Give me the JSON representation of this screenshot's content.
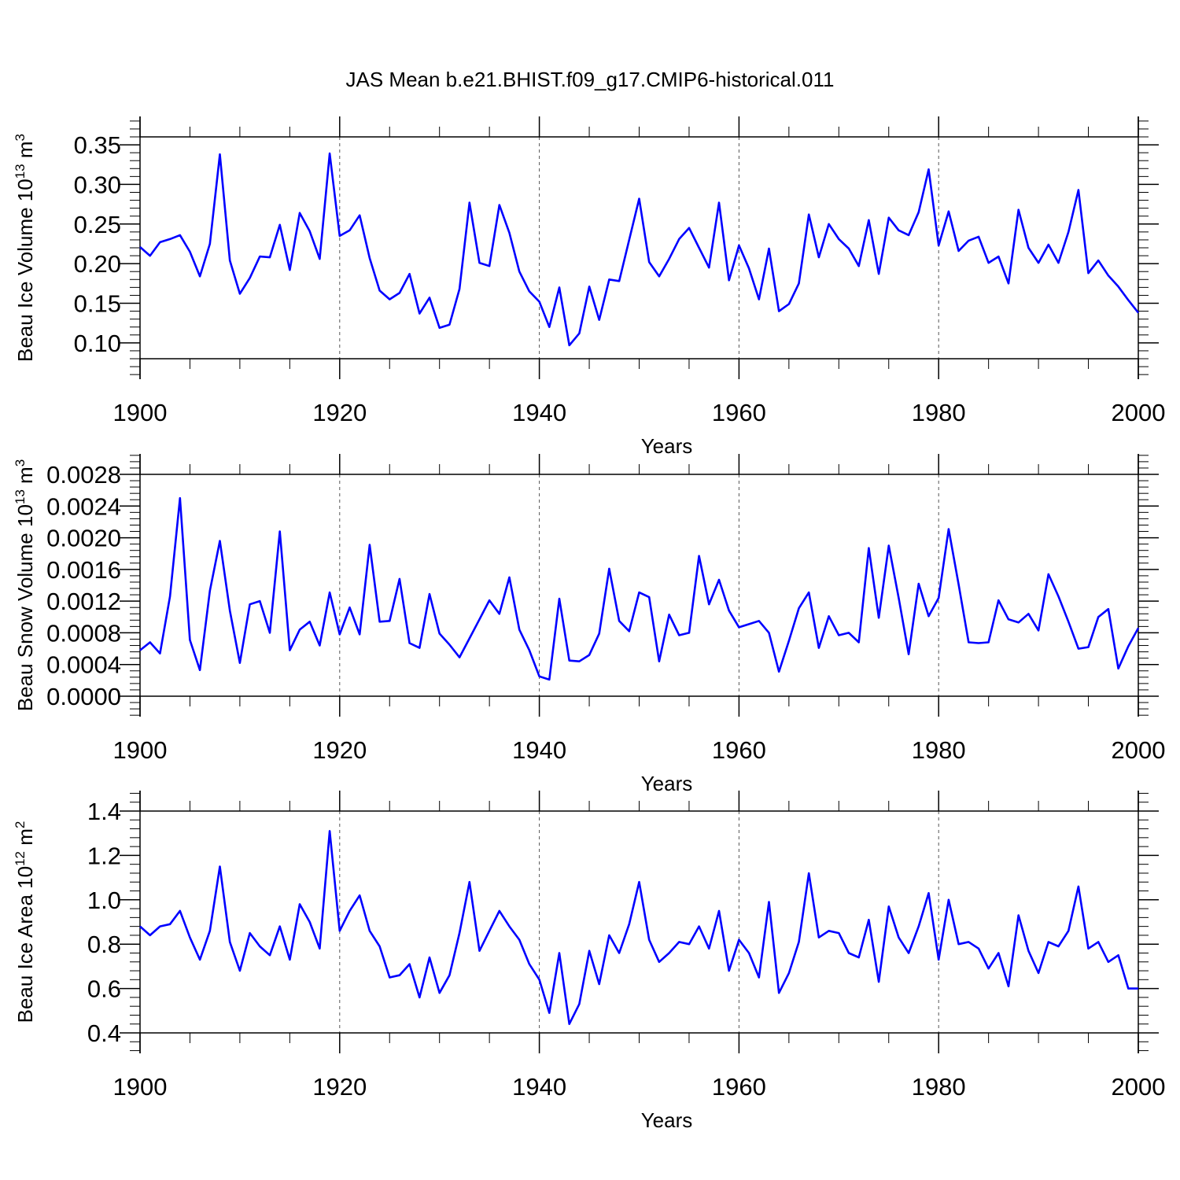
{
  "title": "JAS Mean b.e21.BHIST.f09_g17.CMIP6-historical.011",
  "chart_data": [
    {
      "type": "line",
      "ylabel": "Beau Ice Volume 10",
      "ylabel_exp": "13",
      "ylabel_unit": " m",
      "ylabel_unit_exp": "3",
      "xlabel": "Years",
      "xlim": [
        1900,
        2000
      ],
      "ylim": [
        0.08,
        0.36
      ],
      "yticks": [
        0.1,
        0.15,
        0.2,
        0.25,
        0.3,
        0.35
      ],
      "ytick_labels": [
        "0.10",
        "0.15",
        "0.20",
        "0.25",
        "0.30",
        "0.35"
      ],
      "xticks": [
        1900,
        1920,
        1940,
        1960,
        1980,
        2000
      ],
      "xtick_labels": [
        "1900",
        "1920",
        "1940",
        "1960",
        "1980",
        "2000"
      ],
      "grid_x": [
        1920,
        1940,
        1960,
        1980
      ],
      "series": [
        {
          "name": "Beau Ice Volume",
          "color": "#0000ff",
          "start_year": 1900,
          "values": [
            0.221,
            0.21,
            0.227,
            0.231,
            0.236,
            0.215,
            0.184,
            0.225,
            0.338,
            0.204,
            0.162,
            0.182,
            0.209,
            0.208,
            0.249,
            0.192,
            0.264,
            0.241,
            0.206,
            0.339,
            0.235,
            0.242,
            0.261,
            0.207,
            0.166,
            0.155,
            0.163,
            0.187,
            0.137,
            0.157,
            0.119,
            0.123,
            0.168,
            0.277,
            0.201,
            0.197,
            0.274,
            0.239,
            0.19,
            0.165,
            0.152,
            0.12,
            0.17,
            0.097,
            0.112,
            0.171,
            0.129,
            0.18,
            0.178,
            0.23,
            0.282,
            0.202,
            0.184,
            0.206,
            0.231,
            0.245,
            0.22,
            0.195,
            0.277,
            0.179,
            0.223,
            0.194,
            0.155,
            0.219,
            0.14,
            0.149,
            0.175,
            0.262,
            0.208,
            0.25,
            0.231,
            0.219,
            0.197,
            0.255,
            0.187,
            0.258,
            0.242,
            0.236,
            0.265,
            0.319,
            0.223,
            0.266,
            0.216,
            0.229,
            0.234,
            0.201,
            0.209,
            0.175,
            0.268,
            0.22,
            0.201,
            0.224,
            0.201,
            0.24,
            0.293,
            0.188,
            0.204,
            0.185,
            0.171,
            0.154,
            0.138
          ]
        }
      ]
    },
    {
      "type": "line",
      "ylabel": "Beau Snow Volume 10",
      "ylabel_exp": "13",
      "ylabel_unit": " m",
      "ylabel_unit_exp": "3",
      "xlabel": "Years",
      "xlim": [
        1900,
        2000
      ],
      "ylim": [
        0.0,
        0.0028
      ],
      "yticks": [
        0.0,
        0.0004,
        0.0008,
        0.0012,
        0.0016,
        0.002,
        0.0024,
        0.0028
      ],
      "ytick_labels": [
        "0.0000",
        "0.0004",
        "0.0008",
        "0.0012",
        "0.0016",
        "0.0020",
        "0.0024",
        "0.0028"
      ],
      "xticks": [
        1900,
        1920,
        1940,
        1960,
        1980,
        2000
      ],
      "xtick_labels": [
        "1900",
        "1920",
        "1940",
        "1960",
        "1980",
        "2000"
      ],
      "grid_x": [
        1920,
        1940,
        1960,
        1980
      ],
      "series": [
        {
          "name": "Beau Snow Volume",
          "color": "#0000ff",
          "start_year": 1900,
          "values": [
            0.00058,
            0.00068,
            0.00054,
            0.00126,
            0.0025,
            0.00071,
            0.00033,
            0.00133,
            0.00196,
            0.00108,
            0.00042,
            0.00116,
            0.0012,
            0.0008,
            0.00208,
            0.00058,
            0.00084,
            0.00094,
            0.00064,
            0.00131,
            0.00078,
            0.00112,
            0.00078,
            0.00191,
            0.00094,
            0.00095,
            0.00148,
            0.00067,
            0.00061,
            0.00129,
            0.00079,
            0.00065,
            0.00049,
            0.00073,
            0.00097,
            0.00121,
            0.00104,
            0.0015,
            0.00084,
            0.00058,
            0.00025,
            0.00021,
            0.00123,
            0.00045,
            0.00044,
            0.00052,
            0.00079,
            0.00161,
            0.00095,
            0.00082,
            0.00131,
            0.00125,
            0.00044,
            0.00103,
            0.00077,
            0.0008,
            0.00177,
            0.00116,
            0.00147,
            0.00108,
            0.00087,
            0.00091,
            0.00095,
            0.0008,
            0.00031,
            0.0007,
            0.00111,
            0.00131,
            0.00061,
            0.00101,
            0.00077,
            0.0008,
            0.00068,
            0.00187,
            0.00099,
            0.0019,
            0.00124,
            0.00053,
            0.00142,
            0.00101,
            0.00124,
            0.00211,
            0.00141,
            0.00068,
            0.00067,
            0.00068,
            0.00121,
            0.00097,
            0.00093,
            0.00104,
            0.00083,
            0.00154,
            0.00126,
            0.00094,
            0.0006,
            0.00062,
            0.001,
            0.0011,
            0.00035,
            0.00063,
            0.00086
          ]
        }
      ]
    },
    {
      "type": "line",
      "ylabel": "Beau Ice Area 10",
      "ylabel_exp": "12",
      "ylabel_unit": " m",
      "ylabel_unit_exp": "2",
      "xlabel": "Years",
      "xlim": [
        1900,
        2000
      ],
      "ylim": [
        0.4,
        1.4
      ],
      "yticks": [
        0.4,
        0.6,
        0.8,
        1.0,
        1.2,
        1.4
      ],
      "ytick_labels": [
        "0.4",
        "0.6",
        "0.8",
        "1.0",
        "1.2",
        "1.4"
      ],
      "xticks": [
        1900,
        1920,
        1940,
        1960,
        1980,
        2000
      ],
      "xtick_labels": [
        "1900",
        "1920",
        "1940",
        "1960",
        "1980",
        "2000"
      ],
      "grid_x": [
        1920,
        1940,
        1960,
        1980
      ],
      "series": [
        {
          "name": "Beau Ice Area",
          "color": "#0000ff",
          "start_year": 1900,
          "values": [
            0.88,
            0.84,
            0.88,
            0.89,
            0.95,
            0.83,
            0.73,
            0.86,
            1.15,
            0.81,
            0.68,
            0.85,
            0.79,
            0.75,
            0.88,
            0.73,
            0.98,
            0.9,
            0.78,
            1.31,
            0.86,
            0.95,
            1.02,
            0.86,
            0.79,
            0.65,
            0.66,
            0.71,
            0.56,
            0.74,
            0.58,
            0.66,
            0.85,
            1.08,
            0.77,
            0.86,
            0.95,
            0.88,
            0.82,
            0.71,
            0.64,
            0.49,
            0.76,
            0.44,
            0.53,
            0.77,
            0.62,
            0.84,
            0.76,
            0.89,
            1.08,
            0.82,
            0.72,
            0.76,
            0.81,
            0.8,
            0.88,
            0.78,
            0.95,
            0.68,
            0.82,
            0.76,
            0.65,
            0.99,
            0.58,
            0.67,
            0.81,
            1.12,
            0.83,
            0.86,
            0.85,
            0.76,
            0.74,
            0.91,
            0.63,
            0.97,
            0.83,
            0.76,
            0.88,
            1.03,
            0.73,
            1.0,
            0.8,
            0.81,
            0.78,
            0.69,
            0.76,
            0.61,
            0.93,
            0.77,
            0.67,
            0.81,
            0.79,
            0.86,
            1.06,
            0.78,
            0.81,
            0.72,
            0.75,
            0.6,
            0.6
          ]
        }
      ]
    }
  ]
}
